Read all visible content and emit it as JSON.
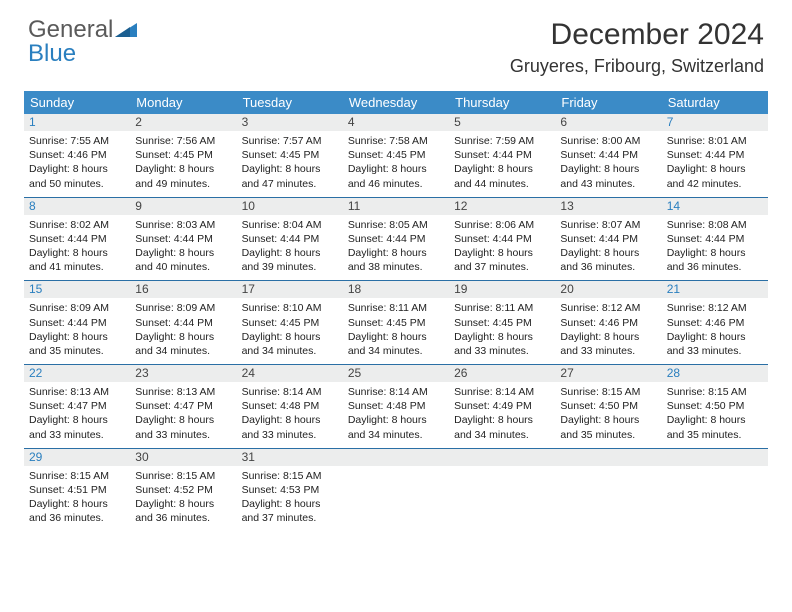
{
  "brand": {
    "part1": "General",
    "part2": "Blue"
  },
  "colors": {
    "header_bg": "#3b8bc7",
    "daynum_bg": "#eceded",
    "week_border": "#2a6fa5",
    "weekend_text": "#2a7fbf",
    "body_text": "#222222"
  },
  "title": "December 2024",
  "location": "Gruyeres, Fribourg, Switzerland",
  "day_headers": [
    "Sunday",
    "Monday",
    "Tuesday",
    "Wednesday",
    "Thursday",
    "Friday",
    "Saturday"
  ],
  "weeks": [
    [
      {
        "n": "1",
        "weekend": true,
        "sunrise": "7:55 AM",
        "sunset": "4:46 PM",
        "daylight": "8 hours and 50 minutes."
      },
      {
        "n": "2",
        "sunrise": "7:56 AM",
        "sunset": "4:45 PM",
        "daylight": "8 hours and 49 minutes."
      },
      {
        "n": "3",
        "sunrise": "7:57 AM",
        "sunset": "4:45 PM",
        "daylight": "8 hours and 47 minutes."
      },
      {
        "n": "4",
        "sunrise": "7:58 AM",
        "sunset": "4:45 PM",
        "daylight": "8 hours and 46 minutes."
      },
      {
        "n": "5",
        "sunrise": "7:59 AM",
        "sunset": "4:44 PM",
        "daylight": "8 hours and 44 minutes."
      },
      {
        "n": "6",
        "sunrise": "8:00 AM",
        "sunset": "4:44 PM",
        "daylight": "8 hours and 43 minutes."
      },
      {
        "n": "7",
        "weekend": true,
        "sunrise": "8:01 AM",
        "sunset": "4:44 PM",
        "daylight": "8 hours and 42 minutes."
      }
    ],
    [
      {
        "n": "8",
        "weekend": true,
        "sunrise": "8:02 AM",
        "sunset": "4:44 PM",
        "daylight": "8 hours and 41 minutes."
      },
      {
        "n": "9",
        "sunrise": "8:03 AM",
        "sunset": "4:44 PM",
        "daylight": "8 hours and 40 minutes."
      },
      {
        "n": "10",
        "sunrise": "8:04 AM",
        "sunset": "4:44 PM",
        "daylight": "8 hours and 39 minutes."
      },
      {
        "n": "11",
        "sunrise": "8:05 AM",
        "sunset": "4:44 PM",
        "daylight": "8 hours and 38 minutes."
      },
      {
        "n": "12",
        "sunrise": "8:06 AM",
        "sunset": "4:44 PM",
        "daylight": "8 hours and 37 minutes."
      },
      {
        "n": "13",
        "sunrise": "8:07 AM",
        "sunset": "4:44 PM",
        "daylight": "8 hours and 36 minutes."
      },
      {
        "n": "14",
        "weekend": true,
        "sunrise": "8:08 AM",
        "sunset": "4:44 PM",
        "daylight": "8 hours and 36 minutes."
      }
    ],
    [
      {
        "n": "15",
        "weekend": true,
        "sunrise": "8:09 AM",
        "sunset": "4:44 PM",
        "daylight": "8 hours and 35 minutes."
      },
      {
        "n": "16",
        "sunrise": "8:09 AM",
        "sunset": "4:44 PM",
        "daylight": "8 hours and 34 minutes."
      },
      {
        "n": "17",
        "sunrise": "8:10 AM",
        "sunset": "4:45 PM",
        "daylight": "8 hours and 34 minutes."
      },
      {
        "n": "18",
        "sunrise": "8:11 AM",
        "sunset": "4:45 PM",
        "daylight": "8 hours and 34 minutes."
      },
      {
        "n": "19",
        "sunrise": "8:11 AM",
        "sunset": "4:45 PM",
        "daylight": "8 hours and 33 minutes."
      },
      {
        "n": "20",
        "sunrise": "8:12 AM",
        "sunset": "4:46 PM",
        "daylight": "8 hours and 33 minutes."
      },
      {
        "n": "21",
        "weekend": true,
        "sunrise": "8:12 AM",
        "sunset": "4:46 PM",
        "daylight": "8 hours and 33 minutes."
      }
    ],
    [
      {
        "n": "22",
        "weekend": true,
        "sunrise": "8:13 AM",
        "sunset": "4:47 PM",
        "daylight": "8 hours and 33 minutes."
      },
      {
        "n": "23",
        "sunrise": "8:13 AM",
        "sunset": "4:47 PM",
        "daylight": "8 hours and 33 minutes."
      },
      {
        "n": "24",
        "sunrise": "8:14 AM",
        "sunset": "4:48 PM",
        "daylight": "8 hours and 33 minutes."
      },
      {
        "n": "25",
        "sunrise": "8:14 AM",
        "sunset": "4:48 PM",
        "daylight": "8 hours and 34 minutes."
      },
      {
        "n": "26",
        "sunrise": "8:14 AM",
        "sunset": "4:49 PM",
        "daylight": "8 hours and 34 minutes."
      },
      {
        "n": "27",
        "sunrise": "8:15 AM",
        "sunset": "4:50 PM",
        "daylight": "8 hours and 35 minutes."
      },
      {
        "n": "28",
        "weekend": true,
        "sunrise": "8:15 AM",
        "sunset": "4:50 PM",
        "daylight": "8 hours and 35 minutes."
      }
    ],
    [
      {
        "n": "29",
        "weekend": true,
        "sunrise": "8:15 AM",
        "sunset": "4:51 PM",
        "daylight": "8 hours and 36 minutes."
      },
      {
        "n": "30",
        "sunrise": "8:15 AM",
        "sunset": "4:52 PM",
        "daylight": "8 hours and 36 minutes."
      },
      {
        "n": "31",
        "sunrise": "8:15 AM",
        "sunset": "4:53 PM",
        "daylight": "8 hours and 37 minutes."
      },
      {
        "empty": true
      },
      {
        "empty": true
      },
      {
        "empty": true
      },
      {
        "empty": true
      }
    ]
  ],
  "labels": {
    "sunrise": "Sunrise: ",
    "sunset": "Sunset: ",
    "daylight": "Daylight: "
  }
}
